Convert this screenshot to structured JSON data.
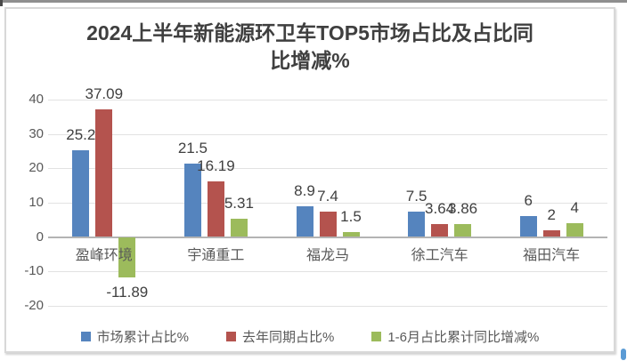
{
  "chart_data": {
    "type": "bar",
    "title": "2024上半年新能源环卫车TOP5市场占比及占比同比增减%",
    "categories": [
      "盈峰环境",
      "宇通重工",
      "福龙马",
      "徐工汽车",
      "福田汽车"
    ],
    "series": [
      {
        "name": "市场累计占比%",
        "color": "#5584BE",
        "values": [
          25.2,
          21.5,
          8.9,
          7.5,
          6
        ]
      },
      {
        "name": "去年同期占比%",
        "color": "#B4534E",
        "values": [
          37.09,
          16.19,
          7.4,
          3.64,
          2
        ]
      },
      {
        "name": "1-6月占比累计同比增减%",
        "color": "#9CBB5C",
        "values": [
          -11.89,
          5.31,
          1.5,
          3.86,
          4
        ]
      }
    ],
    "yticks": [
      40,
      30,
      20,
      10,
      0,
      -10,
      -20
    ],
    "ylim": [
      -20,
      40
    ],
    "grid": true,
    "data_labels": true,
    "legend_position": "bottom"
  },
  "decorations": {
    "handle_color": "#5b9bd5"
  }
}
